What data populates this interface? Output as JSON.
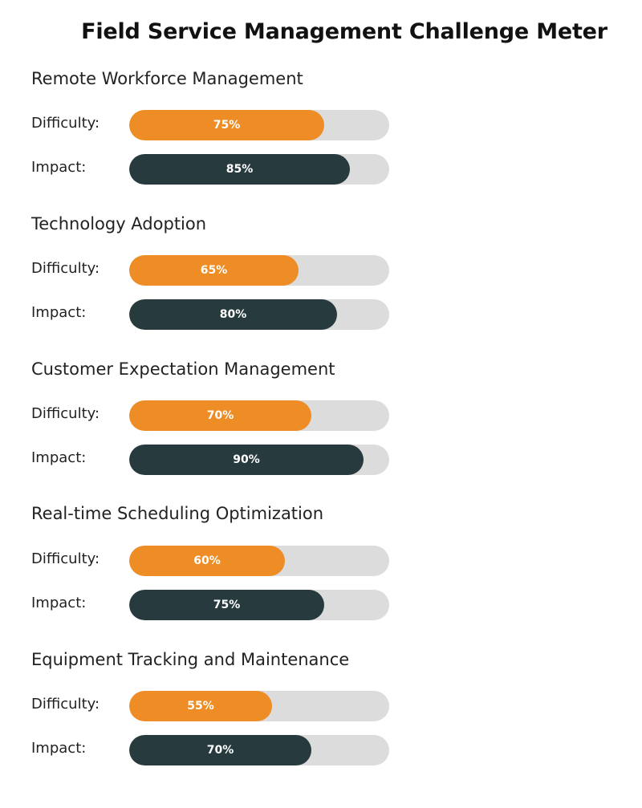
{
  "chart_data": {
    "type": "bar",
    "orientation": "horizontal",
    "title": "Field Service Management Challenge Meter",
    "value_unit": "%",
    "xlim": [
      0,
      100
    ],
    "row_labels": {
      "difficulty": "Difficulty:",
      "impact": "Impact:"
    },
    "colors": {
      "difficulty": "#ee8c25",
      "impact": "#273b3f",
      "track": "#dcdcdc"
    },
    "categories": [
      {
        "name": "Remote Workforce Management",
        "difficulty": 75,
        "impact": 85,
        "difficulty_label": "75%",
        "impact_label": "85%"
      },
      {
        "name": "Technology Adoption",
        "difficulty": 65,
        "impact": 80,
        "difficulty_label": "65%",
        "impact_label": "80%"
      },
      {
        "name": "Customer Expectation Management",
        "difficulty": 70,
        "impact": 90,
        "difficulty_label": "70%",
        "impact_label": "90%"
      },
      {
        "name": "Real-time Scheduling Optimization",
        "difficulty": 60,
        "impact": 75,
        "difficulty_label": "60%",
        "impact_label": "75%"
      },
      {
        "name": "Equipment Tracking and Maintenance",
        "difficulty": 55,
        "impact": 70,
        "difficulty_label": "55%",
        "impact_label": "70%"
      }
    ]
  }
}
